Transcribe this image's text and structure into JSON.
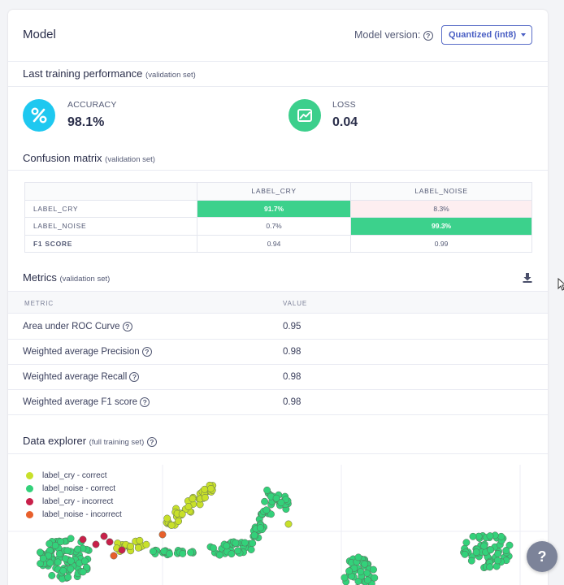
{
  "model": {
    "title": "Model",
    "version_label": "Model version:",
    "version_value": "Quantized (int8)"
  },
  "performance": {
    "title": "Last training performance",
    "subtitle": "(validation set)",
    "accuracy_label": "ACCURACY",
    "accuracy_value": "98.1%",
    "accuracy_icon": "percent-icon",
    "loss_label": "LOSS",
    "loss_value": "0.04",
    "loss_icon": "chart-line-icon",
    "accent_color": "#1ec8f0",
    "loss_color": "#3ccf8c"
  },
  "confusion": {
    "title": "Confusion matrix",
    "subtitle": "(validation set)",
    "columns": [
      "LABEL_CRY",
      "LABEL_NOISE"
    ],
    "rows": [
      {
        "label": "LABEL_CRY",
        "cells": [
          "91.7%",
          "8.3%"
        ]
      },
      {
        "label": "LABEL_NOISE",
        "cells": [
          "0.7%",
          "99.3%"
        ]
      },
      {
        "label": "F1 SCORE",
        "cells": [
          "0.94",
          "0.99"
        ]
      }
    ]
  },
  "metrics": {
    "title": "Metrics",
    "subtitle": "(validation set)",
    "col_metric": "METRIC",
    "col_value": "VALUE",
    "rows": [
      {
        "name": "Area under ROC Curve",
        "value": "0.95"
      },
      {
        "name": "Weighted average Precision",
        "value": "0.98"
      },
      {
        "name": "Weighted average Recall",
        "value": "0.98"
      },
      {
        "name": "Weighted average F1 score",
        "value": "0.98"
      }
    ]
  },
  "explorer": {
    "title": "Data explorer",
    "subtitle": "(full training set)",
    "legend": [
      {
        "label": "label_cry - correct",
        "color": "#c8e02a"
      },
      {
        "label": "label_noise - correct",
        "color": "#33d17a"
      },
      {
        "label": "label_cry - incorrect",
        "color": "#c8204a"
      },
      {
        "label": "label_noise - incorrect",
        "color": "#e8602c"
      }
    ]
  },
  "help_button": "?"
}
